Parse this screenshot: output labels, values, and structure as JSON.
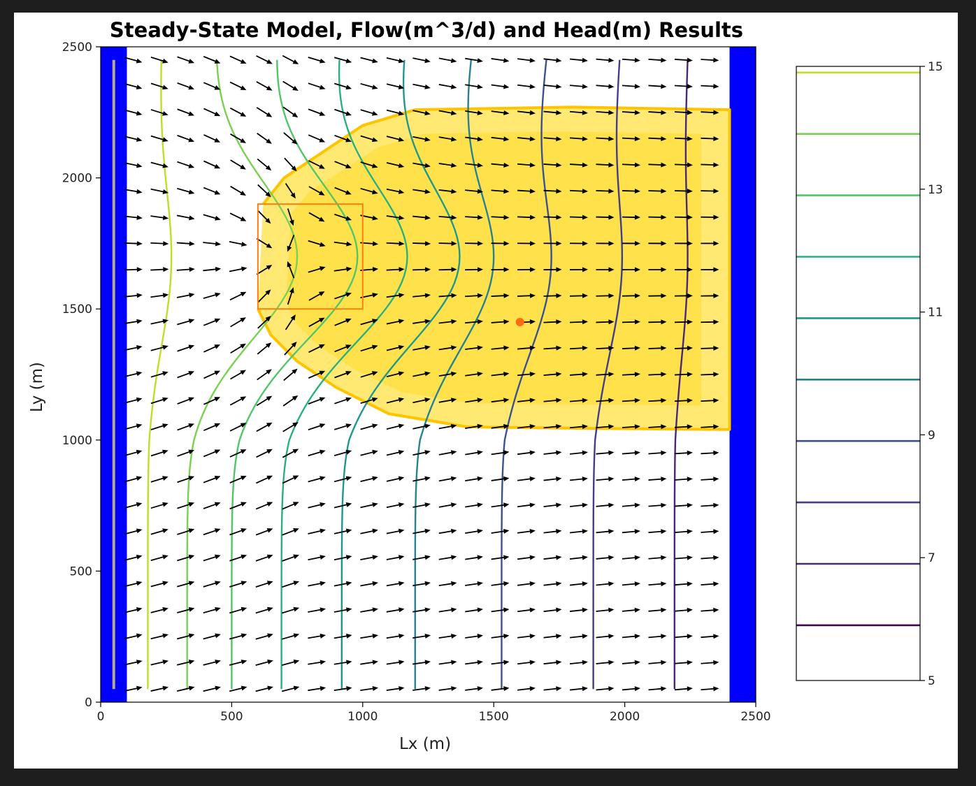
{
  "chart_data": {
    "type": "contour",
    "title": "Steady-State Model, Flow(m^3/d) and Head(m) Results",
    "xlabel": "Lx (m)",
    "ylabel": "Ly (m)",
    "xlim": [
      0,
      2500
    ],
    "ylim": [
      0,
      2500
    ],
    "x_ticks": [
      "0",
      "500",
      "1000",
      "1500",
      "2000",
      "2500"
    ],
    "y_ticks": [
      "0",
      "500",
      "1000",
      "1500",
      "2000",
      "2500"
    ],
    "grid": false,
    "boundaries": {
      "left_constant_head": [
        0,
        100
      ],
      "right_constant_head": [
        2400,
        2500
      ],
      "left_drain_x": 50,
      "left_drain_y": [
        50,
        2450
      ],
      "color": "#0000ff"
    },
    "source_zone": {
      "x": [
        600,
        1000
      ],
      "y": [
        1500,
        1900
      ],
      "color": "#ff7f0e"
    },
    "well": {
      "x": 1600,
      "y": 1450,
      "color": "#ff6a13"
    },
    "plume": {
      "color": "#ffd700",
      "outline": [
        [
          600,
          1500
        ],
        [
          650,
          1400
        ],
        [
          750,
          1300
        ],
        [
          900,
          1200
        ],
        [
          1100,
          1100
        ],
        [
          1400,
          1050
        ],
        [
          1800,
          1045
        ],
        [
          2400,
          1040
        ],
        [
          2400,
          2260
        ],
        [
          1800,
          2270
        ],
        [
          1200,
          2260
        ],
        [
          1000,
          2200
        ],
        [
          850,
          2100
        ],
        [
          700,
          2000
        ],
        [
          620,
          1900
        ]
      ]
    },
    "contours": [
      {
        "level": 14,
        "color": "#bddf26",
        "x_far": 180,
        "x_peak": 270,
        "x_top": 230
      },
      {
        "level": 13,
        "color": "#7ad151",
        "x_far": 330,
        "x_peak": 750,
        "x_top": 430
      },
      {
        "level": 12,
        "color": "#52c569",
        "x_far": 500,
        "x_peak": 980,
        "x_top": 660
      },
      {
        "level": 11,
        "color": "#2ab07f",
        "x_far": 690,
        "x_peak": 1170,
        "x_top": 900
      },
      {
        "level": 10,
        "color": "#1f988b",
        "x_far": 920,
        "x_peak": 1370,
        "x_top": 1150
      },
      {
        "level": 9,
        "color": "#26828e",
        "x_far": 1200,
        "x_peak": 1500,
        "x_top": 1410
      },
      {
        "level": 8,
        "color": "#3b528b",
        "x_far": 1530,
        "x_peak": 1720,
        "x_top": 1700
      },
      {
        "level": 7,
        "color": "#433e85",
        "x_far": 1880,
        "x_peak": 1990,
        "x_top": 1980
      },
      {
        "level": 6,
        "color": "#482878",
        "x_far": 2190,
        "x_peak": 2240,
        "x_top": 2240
      }
    ],
    "colorbar": {
      "range": [
        5,
        15
      ],
      "tick_labels": [
        "5",
        "7",
        "9",
        "11",
        "13",
        "15"
      ],
      "tick_values": [
        5,
        7,
        9,
        11,
        13,
        15
      ],
      "levels": [
        {
          "value": 5.0,
          "color": "#440154"
        },
        {
          "value": 6.0,
          "color": "#482878"
        },
        {
          "value": 7.0,
          "color": "#433e85"
        },
        {
          "value": 8.0,
          "color": "#3b528b"
        },
        {
          "value": 9.0,
          "color": "#26828e"
        },
        {
          "value": 10.0,
          "color": "#1f988b"
        },
        {
          "value": 11.0,
          "color": "#2ab07f"
        },
        {
          "value": 12.0,
          "color": "#52c569"
        },
        {
          "value": 13.0,
          "color": "#7ad151"
        },
        {
          "value": 14.0,
          "color": "#bddf26"
        }
      ]
    },
    "quiver": {
      "x_start": 125,
      "x_step": 100,
      "x_count": 23,
      "y_start": 50,
      "y_step": 100,
      "y_count": 25,
      "color": "#000000",
      "sink": [
        675,
        1700
      ]
    }
  }
}
